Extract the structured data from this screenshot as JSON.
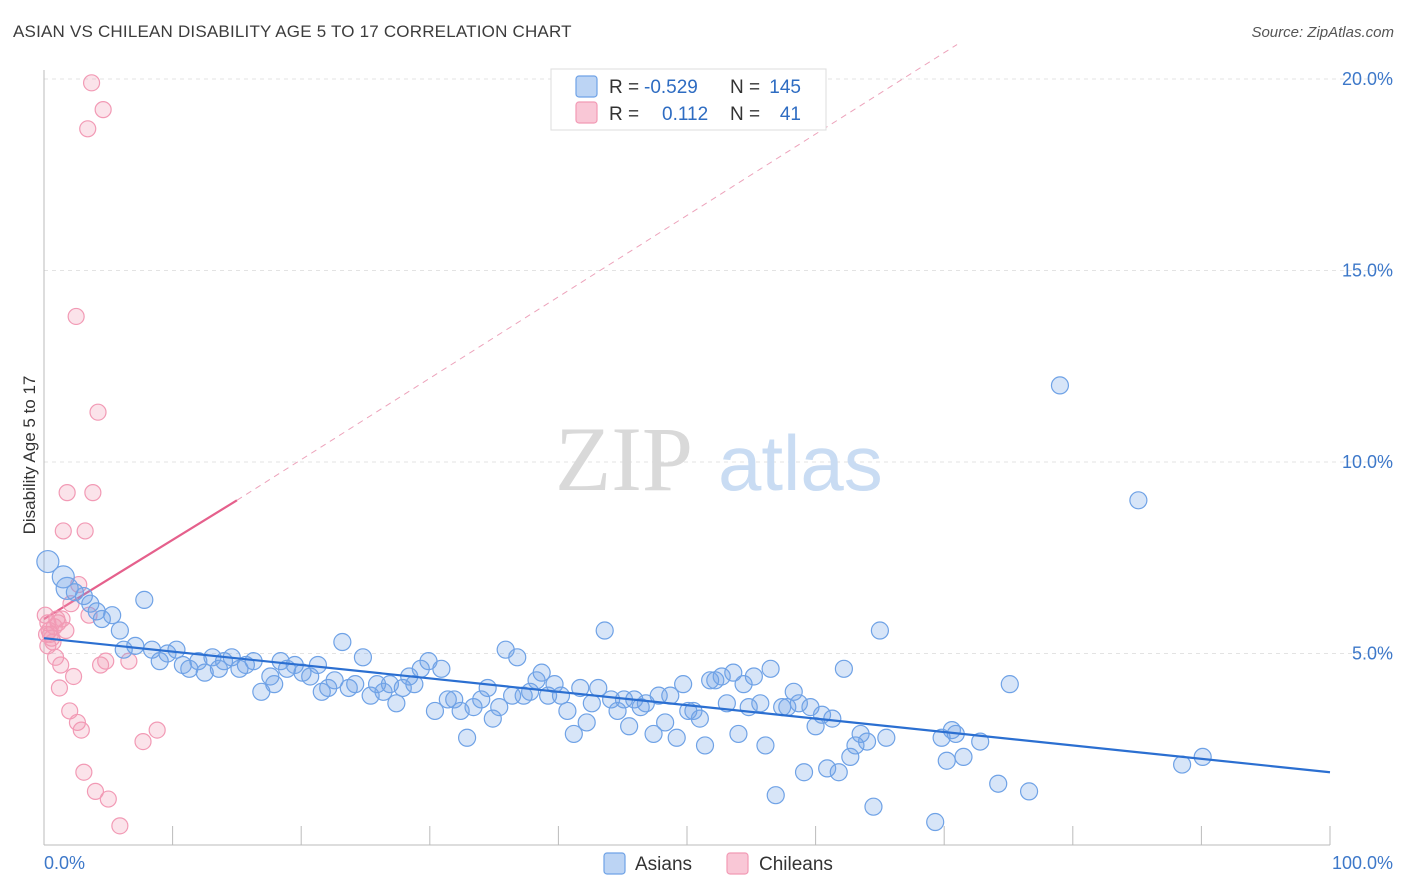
{
  "title": "ASIAN VS CHILEAN DISABILITY AGE 5 TO 17 CORRELATION CHART",
  "source": "Source: ZipAtlas.com",
  "watermark": {
    "zip": "ZIP",
    "atlas": "atlas"
  },
  "colors": {
    "asian": "#6fa2e6",
    "asian_line": "#2b6fd1",
    "chilean": "#f29ab5",
    "chilean_line": "#e5608c",
    "axis_text": "#3d78c9"
  },
  "legend_top": {
    "rows": [
      {
        "r_label": "R =",
        "r_value": "-0.529",
        "n_label": "N =",
        "n_value": "145"
      },
      {
        "r_label": "R =",
        "r_value": "0.112",
        "n_label": "N =",
        "n_value": "41"
      }
    ]
  },
  "legend_bottom": {
    "asians": "Asians",
    "chileans": "Chileans"
  },
  "chart_data": {
    "type": "scatter",
    "title": "ASIAN VS CHILEAN DISABILITY AGE 5 TO 17 CORRELATION CHART",
    "xlabel": "",
    "ylabel": "Disability Age 5 to 17",
    "xlim": [
      0,
      100
    ],
    "ylim": [
      0,
      21
    ],
    "x_tick_labels": [
      "0.0%",
      "100.0%"
    ],
    "y_ticks": [
      5,
      10,
      15,
      20
    ],
    "y_tick_labels": [
      "5.0%",
      "10.0%",
      "15.0%",
      "20.0%"
    ],
    "grid": true,
    "series": [
      {
        "name": "Asians",
        "r": -0.529,
        "n": 145,
        "trend": {
          "x0": 0,
          "y0": 5.4,
          "x1": 100,
          "y1": 1.9
        },
        "points": [
          [
            0.3,
            7.4
          ],
          [
            1.5,
            7.0
          ],
          [
            1.8,
            6.7
          ],
          [
            2.4,
            6.6
          ],
          [
            3.1,
            6.5
          ],
          [
            3.6,
            6.3
          ],
          [
            4.1,
            6.1
          ],
          [
            4.5,
            5.9
          ],
          [
            5.3,
            6.0
          ],
          [
            5.9,
            5.6
          ],
          [
            6.2,
            5.1
          ],
          [
            7.1,
            5.2
          ],
          [
            7.8,
            6.4
          ],
          [
            8.4,
            5.1
          ],
          [
            9.0,
            4.8
          ],
          [
            9.6,
            5.0
          ],
          [
            10.3,
            5.1
          ],
          [
            10.8,
            4.7
          ],
          [
            11.3,
            4.6
          ],
          [
            12.0,
            4.8
          ],
          [
            12.5,
            4.5
          ],
          [
            13.1,
            4.9
          ],
          [
            13.6,
            4.6
          ],
          [
            14.0,
            4.8
          ],
          [
            14.6,
            4.9
          ],
          [
            15.2,
            4.6
          ],
          [
            15.7,
            4.7
          ],
          [
            16.3,
            4.8
          ],
          [
            16.9,
            4.0
          ],
          [
            17.6,
            4.4
          ],
          [
            17.9,
            4.2
          ],
          [
            18.4,
            4.8
          ],
          [
            18.9,
            4.6
          ],
          [
            19.5,
            4.7
          ],
          [
            20.1,
            4.5
          ],
          [
            20.7,
            4.4
          ],
          [
            21.3,
            4.7
          ],
          [
            21.6,
            4.0
          ],
          [
            22.1,
            4.1
          ],
          [
            22.6,
            4.3
          ],
          [
            23.2,
            5.3
          ],
          [
            23.7,
            4.1
          ],
          [
            24.2,
            4.2
          ],
          [
            24.8,
            4.9
          ],
          [
            25.4,
            3.9
          ],
          [
            25.9,
            4.2
          ],
          [
            26.4,
            4.0
          ],
          [
            26.9,
            4.2
          ],
          [
            27.4,
            3.7
          ],
          [
            27.9,
            4.1
          ],
          [
            28.4,
            4.4
          ],
          [
            28.8,
            4.2
          ],
          [
            29.3,
            4.6
          ],
          [
            29.9,
            4.8
          ],
          [
            30.4,
            3.5
          ],
          [
            30.9,
            4.6
          ],
          [
            31.4,
            3.8
          ],
          [
            31.9,
            3.8
          ],
          [
            32.4,
            3.5
          ],
          [
            32.9,
            2.8
          ],
          [
            33.4,
            3.6
          ],
          [
            34.0,
            3.8
          ],
          [
            34.5,
            4.1
          ],
          [
            34.9,
            3.3
          ],
          [
            35.4,
            3.6
          ],
          [
            35.9,
            5.1
          ],
          [
            36.4,
            3.9
          ],
          [
            36.8,
            4.9
          ],
          [
            37.3,
            3.9
          ],
          [
            37.8,
            4.0
          ],
          [
            38.3,
            4.3
          ],
          [
            38.7,
            4.5
          ],
          [
            39.2,
            3.9
          ],
          [
            39.7,
            4.2
          ],
          [
            40.2,
            3.9
          ],
          [
            40.7,
            3.5
          ],
          [
            41.2,
            2.9
          ],
          [
            41.7,
            4.1
          ],
          [
            42.2,
            3.2
          ],
          [
            42.6,
            3.7
          ],
          [
            43.1,
            4.1
          ],
          [
            43.6,
            5.6
          ],
          [
            44.1,
            3.8
          ],
          [
            44.6,
            3.5
          ],
          [
            45.1,
            3.8
          ],
          [
            45.5,
            3.1
          ],
          [
            45.9,
            3.8
          ],
          [
            46.4,
            3.6
          ],
          [
            46.8,
            3.7
          ],
          [
            47.4,
            2.9
          ],
          [
            47.8,
            3.9
          ],
          [
            48.3,
            3.2
          ],
          [
            48.7,
            3.9
          ],
          [
            49.2,
            2.8
          ],
          [
            49.7,
            4.2
          ],
          [
            50.1,
            3.5
          ],
          [
            50.5,
            3.5
          ],
          [
            51.0,
            3.3
          ],
          [
            51.4,
            2.6
          ],
          [
            51.8,
            4.3
          ],
          [
            52.2,
            4.3
          ],
          [
            52.7,
            4.4
          ],
          [
            53.1,
            3.7
          ],
          [
            53.6,
            4.5
          ],
          [
            54.0,
            2.9
          ],
          [
            54.4,
            4.2
          ],
          [
            54.8,
            3.6
          ],
          [
            55.2,
            4.4
          ],
          [
            55.7,
            3.7
          ],
          [
            56.1,
            2.6
          ],
          [
            56.5,
            4.6
          ],
          [
            56.9,
            1.3
          ],
          [
            57.4,
            3.6
          ],
          [
            57.8,
            3.6
          ],
          [
            58.3,
            4.0
          ],
          [
            58.7,
            3.7
          ],
          [
            59.1,
            1.9
          ],
          [
            59.6,
            3.6
          ],
          [
            60.0,
            3.1
          ],
          [
            60.5,
            3.4
          ],
          [
            60.9,
            2.0
          ],
          [
            61.3,
            3.3
          ],
          [
            61.8,
            1.9
          ],
          [
            62.2,
            4.6
          ],
          [
            62.7,
            2.3
          ],
          [
            63.1,
            2.6
          ],
          [
            63.5,
            2.9
          ],
          [
            64.0,
            2.7
          ],
          [
            64.5,
            1.0
          ],
          [
            65.0,
            5.6
          ],
          [
            65.5,
            2.8
          ],
          [
            69.3,
            0.6
          ],
          [
            69.8,
            2.8
          ],
          [
            70.2,
            2.2
          ],
          [
            70.6,
            3.0
          ],
          [
            70.9,
            2.9
          ],
          [
            71.5,
            2.3
          ],
          [
            72.8,
            2.7
          ],
          [
            74.2,
            1.6
          ],
          [
            75.1,
            4.2
          ],
          [
            76.6,
            1.4
          ],
          [
            79.0,
            12.0
          ],
          [
            85.1,
            9.0
          ],
          [
            88.5,
            2.1
          ],
          [
            90.1,
            2.3
          ]
        ]
      },
      {
        "name": "Chileans",
        "r": 0.112,
        "n": 41,
        "trend_solid": {
          "x0": 0,
          "y0": 5.9,
          "x1": 15,
          "y1": 9.0
        },
        "trend_dashed": {
          "x0": 15,
          "y0": 9.0,
          "x1": 71,
          "y1": 20.9
        },
        "points": [
          [
            0.1,
            6.0
          ],
          [
            0.2,
            5.5
          ],
          [
            0.3,
            5.2
          ],
          [
            0.3,
            5.8
          ],
          [
            0.4,
            5.6
          ],
          [
            0.5,
            5.5
          ],
          [
            0.6,
            5.4
          ],
          [
            0.7,
            5.3
          ],
          [
            0.8,
            5.7
          ],
          [
            0.9,
            4.9
          ],
          [
            1.0,
            5.9
          ],
          [
            1.1,
            5.8
          ],
          [
            1.2,
            4.1
          ],
          [
            1.3,
            4.7
          ],
          [
            1.4,
            5.9
          ],
          [
            1.5,
            8.2
          ],
          [
            1.7,
            5.6
          ],
          [
            1.8,
            9.2
          ],
          [
            2.0,
            3.5
          ],
          [
            2.1,
            6.3
          ],
          [
            2.3,
            4.4
          ],
          [
            2.5,
            13.8
          ],
          [
            2.6,
            3.2
          ],
          [
            2.7,
            6.8
          ],
          [
            2.9,
            3.0
          ],
          [
            3.1,
            1.9
          ],
          [
            3.2,
            8.2
          ],
          [
            3.4,
            18.7
          ],
          [
            3.5,
            6.0
          ],
          [
            3.7,
            19.9
          ],
          [
            3.8,
            9.2
          ],
          [
            4.0,
            1.4
          ],
          [
            4.2,
            11.3
          ],
          [
            4.4,
            4.7
          ],
          [
            4.6,
            19.2
          ],
          [
            4.8,
            4.8
          ],
          [
            5.0,
            1.2
          ],
          [
            5.9,
            0.5
          ],
          [
            6.6,
            4.8
          ],
          [
            7.7,
            2.7
          ],
          [
            8.8,
            3.0
          ]
        ]
      }
    ]
  }
}
